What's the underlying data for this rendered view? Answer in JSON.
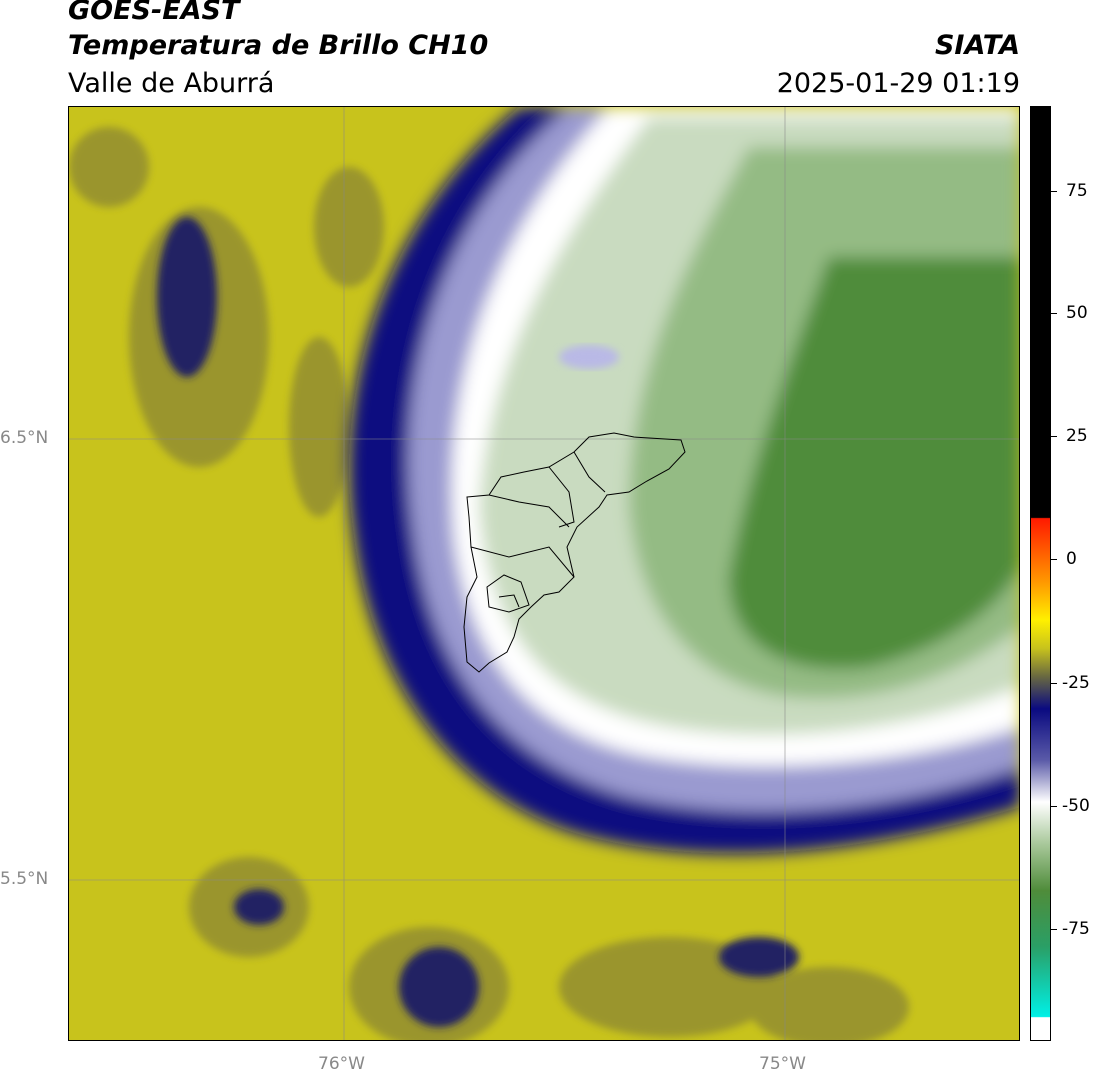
{
  "header": {
    "satellite": "GOES-EAST",
    "product": "Temperatura de Brillo CH10",
    "region": "Valle de Aburrá",
    "source": "SIATA",
    "datetime": "2025-01-29 01:19"
  },
  "map": {
    "lat_labels": [
      "6.5°N",
      "5.5°N"
    ],
    "lon_labels": [
      "76°W",
      "75°W"
    ],
    "colors": {
      "warm_yellow": "#c8c31c",
      "olive": "#7d7a30",
      "navy": "#0a0a80",
      "lavender": "#9a9ad0",
      "white": "#ffffff",
      "pale_green": "#c9dbc0",
      "mid_green": "#94bb84",
      "dark_green": "#4f8c3a"
    }
  },
  "colorbar": {
    "ticks": [
      "75",
      "50",
      "25",
      "0",
      "-25",
      "-50",
      "-75"
    ]
  }
}
